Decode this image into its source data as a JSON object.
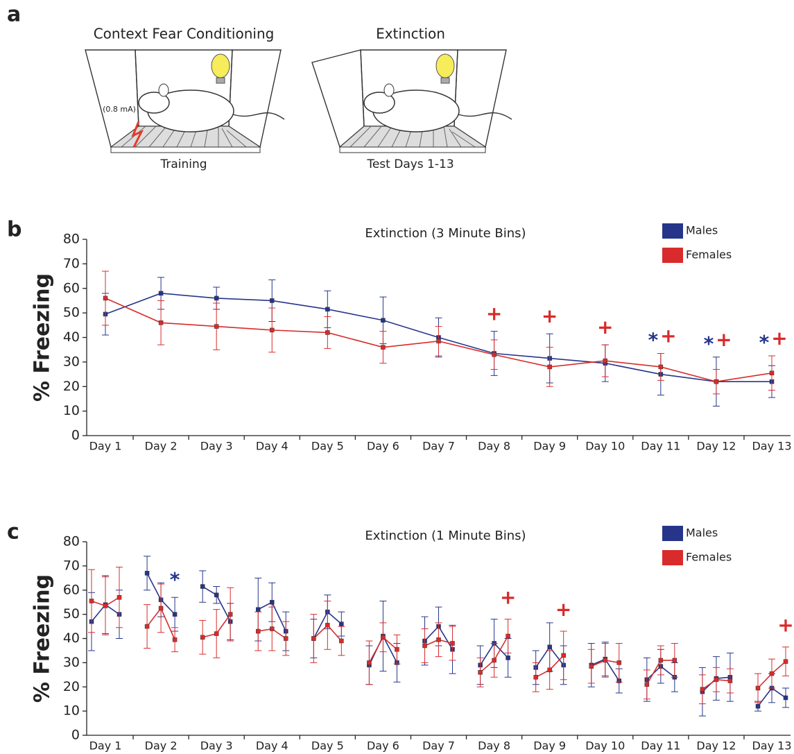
{
  "panel_labels": [
    "a",
    "b",
    "c"
  ],
  "diagram": {
    "left": {
      "title": "Context Fear Conditioning",
      "shock": "(0.8 mA)",
      "caption": "Training"
    },
    "right": {
      "title": "Extinction",
      "caption": "Test Days 1-13"
    }
  },
  "chart_data": [
    {
      "type": "line",
      "title": "Extinction (3 Minute Bins)",
      "ylabel": "% Freezing",
      "categories": [
        "Day 1",
        "Day 2",
        "Day 3",
        "Day 4",
        "Day 5",
        "Day 6",
        "Day 7",
        "Day 8",
        "Day 9",
        "Day 10",
        "Day 11",
        "Day 12",
        "Day 13"
      ],
      "ylim": [
        0,
        80
      ],
      "yticks": [
        0,
        10,
        20,
        30,
        40,
        50,
        60,
        70,
        80
      ],
      "legend": "upper right",
      "series": [
        {
          "name": "Males",
          "color": "#26358a",
          "values": [
            49.5,
            58,
            56,
            55,
            51.5,
            47,
            40,
            33.5,
            31.5,
            29.5,
            25,
            22,
            22
          ],
          "errors": [
            8.5,
            6.5,
            4.5,
            8.5,
            7.5,
            9.5,
            8,
            9,
            10,
            7.5,
            8.5,
            10,
            6.5
          ]
        },
        {
          "name": "Females",
          "color": "#d92b2b",
          "values": [
            56,
            46,
            44.5,
            43,
            42,
            36,
            38.5,
            33,
            28,
            30.5,
            28,
            22,
            25.5
          ],
          "errors": [
            11,
            9,
            9.5,
            9,
            6.5,
            6.5,
            6,
            6,
            8,
            6.5,
            5.5,
            5,
            7
          ]
        }
      ],
      "annotations": [
        {
          "text": "+",
          "category": "Day 8",
          "color": "#d92b2b"
        },
        {
          "text": "+",
          "category": "Day 9",
          "color": "#d92b2b"
        },
        {
          "text": "+",
          "category": "Day 10",
          "color": "#d92b2b"
        },
        {
          "text": "*",
          "category": "Day 11",
          "color": "#26358a"
        },
        {
          "text": "+",
          "category": "Day 11",
          "color": "#d92b2b"
        },
        {
          "text": "*",
          "category": "Day 12",
          "color": "#26358a"
        },
        {
          "text": "+",
          "category": "Day 12",
          "color": "#d92b2b"
        },
        {
          "text": "*",
          "category": "Day 13",
          "color": "#26358a"
        },
        {
          "text": "+",
          "category": "Day 13",
          "color": "#d92b2b"
        }
      ]
    },
    {
      "type": "line",
      "title": "Extinction (1 Minute Bins)",
      "ylabel": "% Freezing",
      "categories": [
        "Day 1",
        "Day 2",
        "Day 3",
        "Day 4",
        "Day 5",
        "Day 6",
        "Day 7",
        "Day 8",
        "Day 9",
        "Day 10",
        "Day 11",
        "Day 12",
        "Day 13"
      ],
      "ylim": [
        0,
        80
      ],
      "yticks": [
        0,
        10,
        20,
        30,
        40,
        50,
        60,
        70,
        80
      ],
      "legend": "upper right",
      "series": [
        {
          "name": "Males",
          "color": "#26358a",
          "values": [
            [
              47,
              54,
              50
            ],
            [
              67,
              56,
              50
            ],
            [
              61.5,
              58,
              47
            ],
            [
              52,
              55,
              43
            ],
            [
              40,
              51,
              46
            ],
            [
              29,
              41,
              30
            ],
            [
              39,
              45,
              35.5
            ],
            [
              29,
              38,
              32
            ],
            [
              28,
              36.5,
              29
            ],
            [
              29,
              31.5,
              22.5
            ],
            [
              23,
              28.5,
              24
            ],
            [
              18,
              23.5,
              24
            ],
            [
              12,
              19.5,
              15.5
            ]
          ],
          "errors": [
            [
              12,
              12,
              10
            ],
            [
              7,
              7,
              7
            ],
            [
              6.5,
              3.5,
              7.5
            ],
            [
              13,
              8,
              8
            ],
            [
              8,
              7,
              5
            ],
            [
              8,
              14.5,
              8
            ],
            [
              10,
              8,
              10
            ],
            [
              8,
              10,
              8
            ],
            [
              7,
              10,
              8
            ],
            [
              9,
              7,
              5
            ],
            [
              9,
              7,
              6
            ],
            [
              10,
              9,
              10
            ],
            [
              2,
              6,
              4
            ]
          ]
        },
        {
          "name": "Females",
          "color": "#d92b2b",
          "values": [
            [
              55.5,
              53.5,
              57
            ],
            [
              45,
              52.5,
              39.5
            ],
            [
              40.5,
              42,
              50
            ],
            [
              43,
              44,
              40
            ],
            [
              40,
              45.5,
              39
            ],
            [
              30,
              40.5,
              35.5
            ],
            [
              37,
              39.5,
              38
            ],
            [
              26,
              31,
              41
            ],
            [
              24,
              27,
              33
            ],
            [
              28.5,
              31,
              30
            ],
            [
              21,
              31,
              31
            ],
            [
              19,
              23,
              22.5
            ],
            [
              19.5,
              25.5,
              30.5
            ]
          ],
          "errors": [
            [
              13,
              12,
              12.5
            ],
            [
              9,
              10,
              5
            ],
            [
              7,
              10,
              11
            ],
            [
              8,
              9,
              7
            ],
            [
              10,
              10,
              6
            ],
            [
              9,
              6,
              6
            ],
            [
              7,
              7,
              7
            ],
            [
              6,
              7,
              7
            ],
            [
              6,
              8,
              10
            ],
            [
              7,
              7,
              8
            ],
            [
              6,
              6,
              7
            ],
            [
              6,
              5,
              5
            ],
            [
              6,
              6,
              6
            ]
          ]
        }
      ],
      "annotations": [
        {
          "text": "*",
          "category": "Day 2",
          "color": "#26358a"
        },
        {
          "text": "+",
          "category": "Day 8",
          "color": "#d92b2b"
        },
        {
          "text": "+",
          "category": "Day 9",
          "color": "#d92b2b"
        },
        {
          "text": "+",
          "category": "Day 13",
          "color": "#d92b2b"
        }
      ]
    }
  ]
}
